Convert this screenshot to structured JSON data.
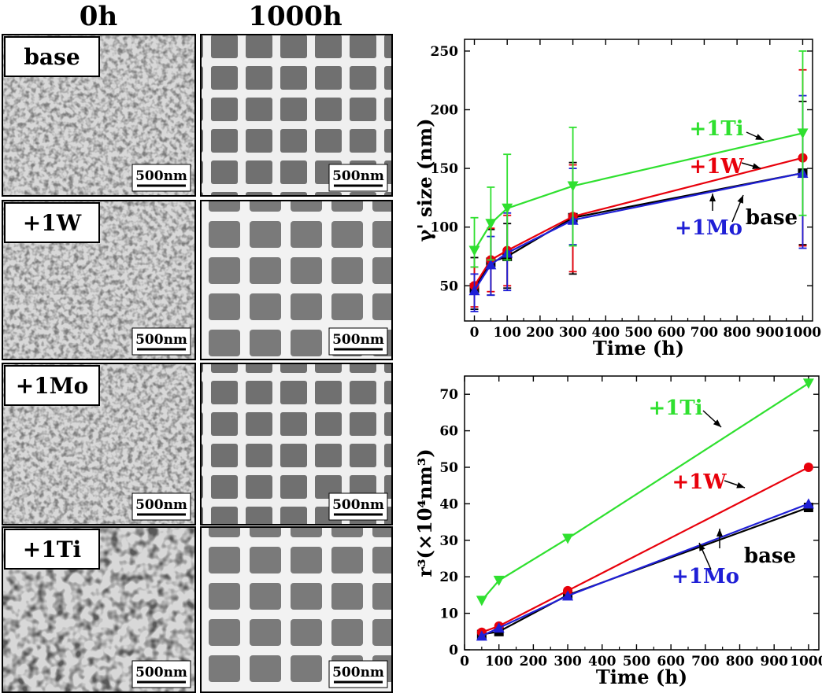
{
  "figure": {
    "col_headers": [
      "0h",
      "1000h"
    ],
    "rows": [
      "base",
      "+1W",
      "+1Mo",
      "+1Ti"
    ],
    "scale_bar": "500nm"
  },
  "chart_data": [
    {
      "type": "line",
      "xlabel": "Time (h)",
      "ylabel": "γ' size (nm)",
      "xlim": [
        -30,
        1030
      ],
      "ylim": [
        20,
        260
      ],
      "xticks": [
        0,
        100,
        200,
        300,
        400,
        500,
        600,
        700,
        800,
        900,
        1000
      ],
      "yticks": [
        50,
        100,
        150,
        200,
        250
      ],
      "grid": false,
      "series": [
        {
          "name": "base",
          "color": "#000000",
          "marker": "square",
          "x": [
            0,
            50,
            100,
            300,
            1000
          ],
          "y": [
            48,
            70,
            75,
            108,
            146
          ],
          "err": [
            [
              30,
              74
            ],
            [
              42,
              98
            ],
            [
              48,
              103
            ],
            [
              60,
              155
            ],
            [
              85,
              207
            ]
          ]
        },
        {
          "name": "+1W",
          "color": "#e8000b",
          "marker": "circle",
          "x": [
            0,
            50,
            100,
            300,
            1000
          ],
          "y": [
            50,
            72,
            80,
            109,
            159
          ],
          "err": [
            [
              32,
              66
            ],
            [
              45,
              99
            ],
            [
              50,
              110
            ],
            [
              62,
              153
            ],
            [
              84,
              234
            ]
          ]
        },
        {
          "name": "+1Mo",
          "color": "#1f1fd6",
          "marker": "triangle-up",
          "x": [
            0,
            50,
            100,
            300,
            1000
          ],
          "y": [
            46,
            68,
            78,
            106,
            146
          ],
          "err": [
            [
              28,
              60
            ],
            [
              42,
              92
            ],
            [
              46,
              112
            ],
            [
              85,
              150
            ],
            [
              82,
              212
            ]
          ]
        },
        {
          "name": "+1Ti",
          "color": "#2fe02f",
          "marker": "triangle-down",
          "x": [
            0,
            50,
            100,
            300,
            1000
          ],
          "y": [
            80,
            103,
            116,
            135,
            180
          ],
          "err": [
            [
              66,
              108
            ],
            [
              72,
              134
            ],
            [
              72,
              162
            ],
            [
              84,
              185
            ],
            [
              110,
              250
            ]
          ]
        }
      ]
    },
    {
      "type": "line",
      "xlabel": "Time (h)",
      "ylabel": "r³(×10⁴nm³)",
      "xlim": [
        0,
        1030
      ],
      "ylim": [
        0,
        75
      ],
      "xticks": [
        0,
        100,
        200,
        300,
        400,
        500,
        600,
        700,
        800,
        900,
        1000
      ],
      "yticks": [
        0,
        10,
        20,
        30,
        40,
        50,
        60,
        70
      ],
      "grid": false,
      "series": [
        {
          "name": "base",
          "color": "#000000",
          "marker": "square",
          "x": [
            50,
            100,
            300,
            1000
          ],
          "y": [
            4.2,
            5.0,
            15.0,
            39.0
          ]
        },
        {
          "name": "+1W",
          "color": "#e8000b",
          "marker": "circle",
          "x": [
            50,
            100,
            300,
            1000
          ],
          "y": [
            4.8,
            6.5,
            16.2,
            50.0
          ]
        },
        {
          "name": "+1Mo",
          "color": "#1f1fd6",
          "marker": "triangle-up",
          "x": [
            50,
            100,
            300,
            1000
          ],
          "y": [
            3.8,
            6.0,
            14.8,
            40.0
          ]
        },
        {
          "name": "+1Ti",
          "color": "#2fe02f",
          "marker": "triangle-down",
          "x": [
            50,
            100,
            300,
            1000
          ],
          "y": [
            13.5,
            19.0,
            30.5,
            73.0
          ]
        }
      ]
    }
  ]
}
